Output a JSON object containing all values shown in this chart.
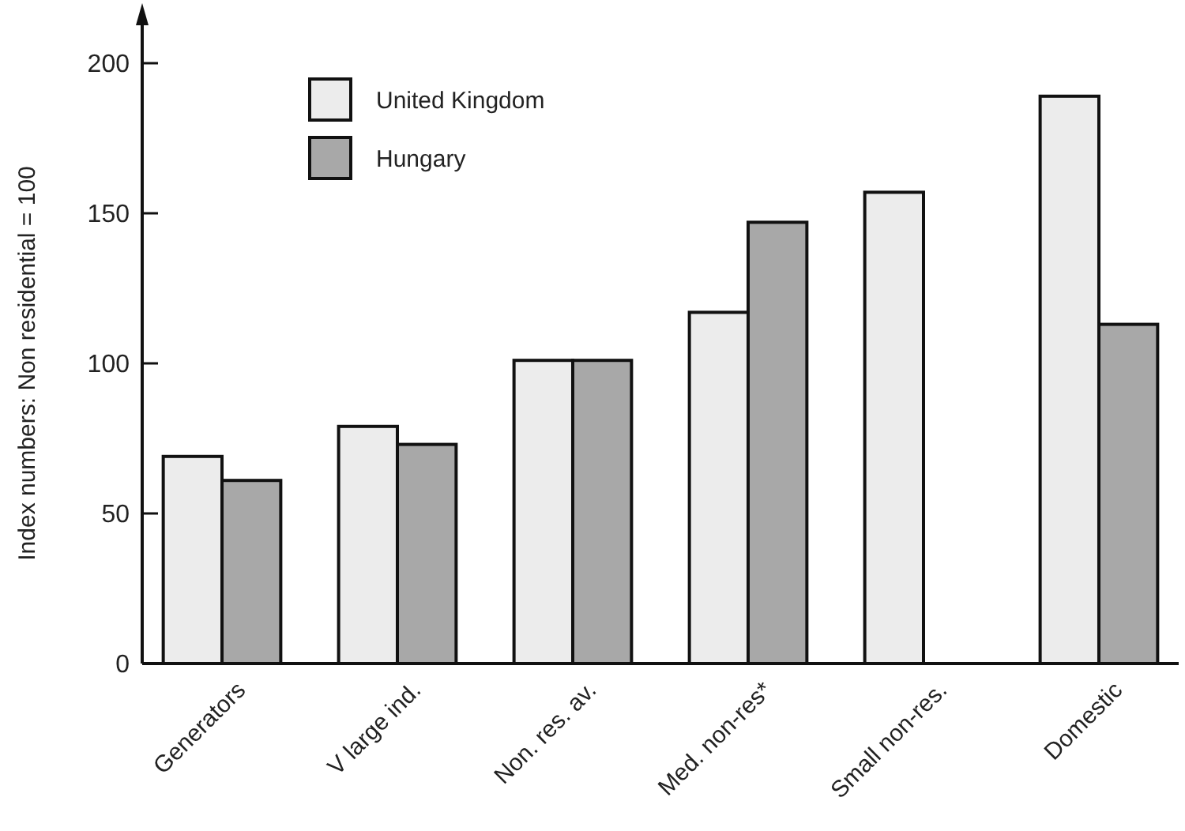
{
  "chart_data": {
    "type": "bar",
    "ylabel": "Index numbers: Non residential = 100",
    "categories": [
      "Generators",
      "V large ind.",
      "Non. res. av.",
      "Med. non-res*",
      "Small non-res.",
      "Domestic"
    ],
    "series": [
      {
        "name": "United Kingdom",
        "color": "#ececec",
        "values": [
          69,
          79,
          101,
          117,
          157,
          189
        ]
      },
      {
        "name": "Hungary",
        "color": "#a8a8a8",
        "values": [
          61,
          73,
          101,
          147,
          null,
          113
        ]
      }
    ],
    "ylim": [
      0,
      200
    ],
    "yticks": [
      0,
      50,
      100,
      150,
      200
    ],
    "grid": false,
    "legend": "top left"
  }
}
